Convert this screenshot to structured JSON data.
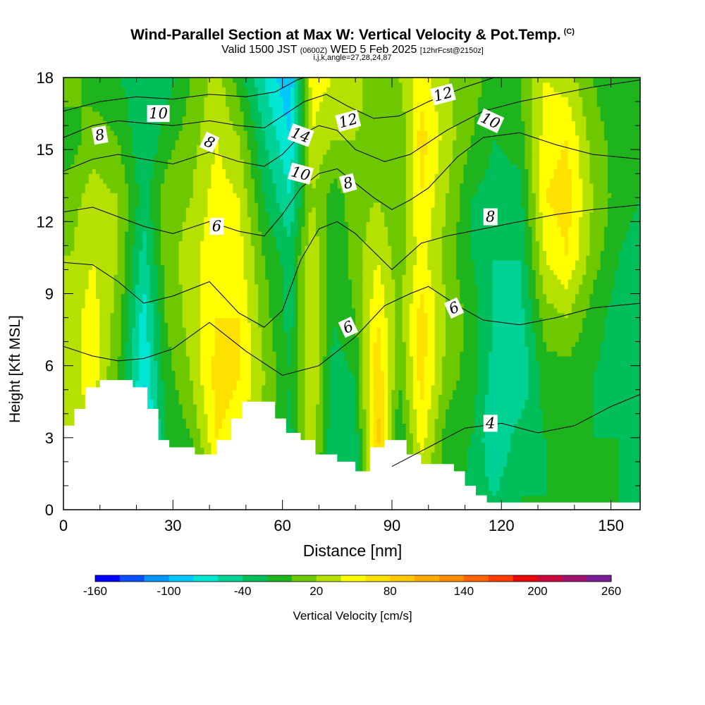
{
  "header": {
    "title": "Wind-Parallel Section at Max W: Vertical Velocity & Pot.Temp.",
    "copyright": "(C)",
    "valid_main": "Valid 1500 JST",
    "valid_z": "(0600Z)",
    "valid_date": "WED 5 Feb 2025",
    "valid_fcst": "[12hrFcst@2150z]",
    "subtitle2": "i,j,k,angle=27,28,24,87"
  },
  "chart_data": {
    "type": "heatmap",
    "xlabel": "Distance [nm]",
    "ylabel": "Height [Kft MSL]",
    "xlim": [
      0,
      158
    ],
    "ylim": [
      0,
      18
    ],
    "x_ticks": [
      0,
      30,
      60,
      90,
      120,
      150
    ],
    "y_ticks": [
      0,
      3,
      6,
      9,
      12,
      15,
      18
    ],
    "colorbar": {
      "label": "Vertical Velocity [cm/s]",
      "ticks": [
        -160,
        -100,
        -40,
        20,
        80,
        140,
        200,
        260
      ],
      "min": -160,
      "max": 260,
      "step": 20,
      "colors": [
        "#0000ff",
        "#0a50ff",
        "#0a96ff",
        "#00c8ff",
        "#00e6d2",
        "#00d296",
        "#00be5a",
        "#1eb41e",
        "#6ec800",
        "#b4e100",
        "#ffff00",
        "#ffe100",
        "#ffc800",
        "#ffaa00",
        "#ff8c00",
        "#ff6400",
        "#ff3c00",
        "#e60a0a",
        "#c80a3c",
        "#a0146e",
        "#781e96"
      ]
    },
    "vertical_velocity_columns": [
      {
        "x": 2,
        "w": [
          20,
          30,
          30,
          30,
          20,
          10,
          -10,
          10
        ]
      },
      {
        "x": 8,
        "w": [
          0,
          40,
          50,
          50,
          40,
          30,
          10,
          -10
        ]
      },
      {
        "x": 15,
        "w": [
          0,
          -10,
          0,
          10,
          20,
          20,
          0,
          -20
        ]
      },
      {
        "x": 22,
        "w": [
          0,
          -100,
          -80,
          -70,
          -50,
          -30,
          -40,
          -30
        ]
      },
      {
        "x": 28,
        "w": [
          -30,
          -20,
          -10,
          0,
          10,
          10,
          -10,
          -30
        ]
      },
      {
        "x": 35,
        "w": [
          -30,
          0,
          20,
          30,
          30,
          20,
          10,
          0
        ]
      },
      {
        "x": 42,
        "w": [
          20,
          60,
          70,
          60,
          60,
          50,
          40,
          30
        ]
      },
      {
        "x": 48,
        "w": [
          20,
          50,
          60,
          60,
          50,
          40,
          20,
          -10
        ]
      },
      {
        "x": 55,
        "w": [
          0,
          10,
          20,
          10,
          0,
          -20,
          -40,
          -60
        ]
      },
      {
        "x": 62,
        "w": [
          -20,
          -30,
          -20,
          -30,
          -30,
          -60,
          -80,
          -100
        ]
      },
      {
        "x": 68,
        "w": [
          0,
          40,
          40,
          40,
          40,
          20,
          40,
          50
        ]
      },
      {
        "x": 74,
        "w": [
          -40,
          -40,
          -30,
          -20,
          -20,
          -10,
          20,
          40
        ]
      },
      {
        "x": 80,
        "w": [
          -40,
          -30,
          -20,
          0,
          10,
          10,
          20,
          30
        ]
      },
      {
        "x": 86,
        "w": [
          40,
          90,
          80,
          60,
          40,
          20,
          10,
          0
        ]
      },
      {
        "x": 92,
        "w": [
          -10,
          -20,
          0,
          10,
          10,
          0,
          0,
          20
        ]
      },
      {
        "x": 98,
        "w": [
          20,
          50,
          70,
          70,
          50,
          60,
          70,
          50
        ]
      },
      {
        "x": 105,
        "w": [
          0,
          -10,
          10,
          20,
          10,
          20,
          30,
          20
        ]
      },
      {
        "x": 112,
        "w": [
          -30,
          -20,
          -10,
          -10,
          -20,
          -20,
          0,
          10
        ]
      },
      {
        "x": 118,
        "w": [
          -40,
          -60,
          -50,
          -40,
          -40,
          -30,
          -20,
          -10
        ]
      },
      {
        "x": 125,
        "w": [
          -20,
          -30,
          -60,
          -50,
          -40,
          -30,
          -10,
          0
        ]
      },
      {
        "x": 132,
        "w": [
          -20,
          -20,
          -10,
          10,
          40,
          60,
          50,
          40
        ]
      },
      {
        "x": 138,
        "w": [
          -20,
          -20,
          -10,
          20,
          60,
          70,
          60,
          30
        ]
      },
      {
        "x": 145,
        "w": [
          -20,
          -20,
          -20,
          -10,
          10,
          20,
          10,
          0
        ]
      },
      {
        "x": 152,
        "w": [
          -20,
          -20,
          -30,
          -30,
          -20,
          -10,
          -10,
          -20
        ]
      },
      {
        "x": 158,
        "w": [
          -30,
          -30,
          -30,
          -30,
          -30,
          -20,
          -20,
          -20
        ]
      }
    ],
    "column_heights": [
      0.5,
      3,
      5.5,
      8,
      10.5,
      13,
      15.5,
      18
    ],
    "terrain": [
      {
        "x": 0,
        "z": 3.5
      },
      {
        "x": 3,
        "z": 4.2
      },
      {
        "x": 6,
        "z": 5.1
      },
      {
        "x": 10,
        "z": 5.4
      },
      {
        "x": 19,
        "z": 5.1
      },
      {
        "x": 23,
        "z": 4.2
      },
      {
        "x": 26,
        "z": 2.9
      },
      {
        "x": 29,
        "z": 2.6
      },
      {
        "x": 36,
        "z": 2.3
      },
      {
        "x": 42,
        "z": 2.9
      },
      {
        "x": 46,
        "z": 3.8
      },
      {
        "x": 49,
        "z": 4.5
      },
      {
        "x": 58,
        "z": 3.8
      },
      {
        "x": 61,
        "z": 3.2
      },
      {
        "x": 65,
        "z": 2.9
      },
      {
        "x": 69,
        "z": 2.3
      },
      {
        "x": 75,
        "z": 2.0
      },
      {
        "x": 80,
        "z": 1.6
      },
      {
        "x": 84,
        "z": 2.6
      },
      {
        "x": 88,
        "z": 2.9
      },
      {
        "x": 94,
        "z": 2.3
      },
      {
        "x": 98,
        "z": 1.9
      },
      {
        "x": 107,
        "z": 1.6
      },
      {
        "x": 110,
        "z": 1.0
      },
      {
        "x": 113,
        "z": 0.6
      },
      {
        "x": 116,
        "z": 0.3
      },
      {
        "x": 158,
        "z": 0.3
      }
    ],
    "theta_contours": [
      {
        "label": "4",
        "points": [
          [
            90,
            1.8
          ],
          [
            100,
            2.6
          ],
          [
            110,
            3.4
          ],
          [
            120,
            3.6
          ],
          [
            130,
            3.2
          ],
          [
            140,
            3.5
          ],
          [
            150,
            4.3
          ],
          [
            158,
            4.8
          ]
        ]
      },
      {
        "label": "6",
        "points": [
          [
            0,
            6.8
          ],
          [
            8,
            6.4
          ],
          [
            15,
            6.2
          ],
          [
            22,
            6.3
          ],
          [
            30,
            6.7
          ],
          [
            40,
            7.8
          ],
          [
            50,
            6.6
          ],
          [
            60,
            5.6
          ],
          [
            70,
            6.0
          ],
          [
            80,
            7.2
          ],
          [
            88,
            8.5
          ],
          [
            95,
            9.0
          ],
          [
            100,
            9.3
          ],
          [
            108,
            8.5
          ],
          [
            115,
            7.9
          ],
          [
            125,
            7.7
          ],
          [
            135,
            8.0
          ],
          [
            145,
            8.4
          ],
          [
            158,
            8.6
          ]
        ]
      },
      {
        "label": "8",
        "points": [
          [
            0,
            10.3
          ],
          [
            8,
            10.2
          ],
          [
            15,
            9.5
          ],
          [
            22,
            8.6
          ],
          [
            30,
            8.9
          ],
          [
            40,
            9.5
          ],
          [
            48,
            8.2
          ],
          [
            55,
            7.6
          ],
          [
            60,
            8.3
          ],
          [
            65,
            10.4
          ],
          [
            70,
            11.7
          ],
          [
            75,
            12.0
          ],
          [
            80,
            11.5
          ],
          [
            90,
            10.0
          ],
          [
            98,
            11.1
          ],
          [
            105,
            11.4
          ],
          [
            115,
            11.7
          ],
          [
            125,
            12.0
          ],
          [
            135,
            12.3
          ],
          [
            145,
            12.5
          ],
          [
            158,
            12.7
          ]
        ]
      },
      {
        "label": "8",
        "points": [
          [
            0,
            12.4
          ],
          [
            8,
            12.6
          ],
          [
            15,
            12.2
          ],
          [
            22,
            11.8
          ],
          [
            30,
            11.5
          ],
          [
            40,
            12.0
          ],
          [
            48,
            11.6
          ],
          [
            55,
            11.4
          ],
          [
            60,
            12.3
          ],
          [
            65,
            13.4
          ],
          [
            70,
            14.0
          ],
          [
            75,
            14.2
          ],
          [
            80,
            13.6
          ],
          [
            85,
            13.0
          ],
          [
            90,
            12.5
          ],
          [
            95,
            12.9
          ],
          [
            100,
            13.4
          ],
          [
            108,
            14.7
          ],
          [
            115,
            15.5
          ],
          [
            125,
            15.7
          ],
          [
            135,
            15.2
          ],
          [
            145,
            14.8
          ],
          [
            158,
            14.6
          ]
        ]
      },
      {
        "label": "10",
        "points": [
          [
            0,
            14.1
          ],
          [
            8,
            14.6
          ],
          [
            15,
            14.8
          ],
          [
            22,
            14.6
          ],
          [
            30,
            14.4
          ],
          [
            40,
            14.9
          ],
          [
            48,
            14.5
          ],
          [
            55,
            14.3
          ],
          [
            60,
            14.8
          ],
          [
            65,
            15.6
          ],
          [
            70,
            16.0
          ],
          [
            75,
            15.8
          ],
          [
            80,
            15.0
          ],
          [
            88,
            14.5
          ],
          [
            95,
            14.8
          ],
          [
            105,
            15.8
          ],
          [
            115,
            16.6
          ],
          [
            125,
            17.0
          ],
          [
            135,
            17.3
          ],
          [
            145,
            17.6
          ],
          [
            158,
            17.9
          ]
        ]
      },
      {
        "label": "12",
        "points": [
          [
            0,
            15.5
          ],
          [
            8,
            16.0
          ],
          [
            15,
            16.2
          ],
          [
            22,
            16.1
          ],
          [
            30,
            16.0
          ],
          [
            40,
            16.2
          ],
          [
            48,
            16.0
          ],
          [
            55,
            15.9
          ],
          [
            60,
            16.4
          ],
          [
            66,
            17.0
          ],
          [
            72,
            17.3
          ],
          [
            78,
            16.8
          ],
          [
            85,
            16.3
          ],
          [
            92,
            16.4
          ],
          [
            100,
            17.0
          ],
          [
            110,
            17.6
          ],
          [
            118,
            18.0
          ]
        ]
      },
      {
        "label": "14",
        "points": [
          [
            0,
            16.6
          ],
          [
            10,
            17.0
          ],
          [
            20,
            17.2
          ],
          [
            30,
            17.1
          ],
          [
            40,
            17.3
          ],
          [
            50,
            17.2
          ],
          [
            58,
            17.4
          ],
          [
            64,
            17.9
          ],
          [
            66,
            18.0
          ]
        ]
      }
    ],
    "contour_labels": [
      {
        "text": "8",
        "x": 10,
        "y": 15.6,
        "angle": -10
      },
      {
        "text": "10",
        "x": 26,
        "y": 16.5,
        "angle": 0
      },
      {
        "text": "8",
        "x": 40,
        "y": 15.3,
        "angle": 25
      },
      {
        "text": "6",
        "x": 42,
        "y": 11.8,
        "angle": 0
      },
      {
        "text": "14",
        "x": 65,
        "y": 15.6,
        "angle": 20
      },
      {
        "text": "10",
        "x": 65,
        "y": 14.0,
        "angle": 15
      },
      {
        "text": "12",
        "x": 78,
        "y": 16.2,
        "angle": -15
      },
      {
        "text": "8",
        "x": 78,
        "y": 13.6,
        "angle": -15
      },
      {
        "text": "6",
        "x": 78,
        "y": 7.6,
        "angle": -25
      },
      {
        "text": "12",
        "x": 104,
        "y": 17.3,
        "angle": -15
      },
      {
        "text": "10",
        "x": 117,
        "y": 16.2,
        "angle": 25
      },
      {
        "text": "8",
        "x": 117,
        "y": 12.2,
        "angle": 0
      },
      {
        "text": "6",
        "x": 107,
        "y": 8.4,
        "angle": -25
      },
      {
        "text": "4",
        "x": 117,
        "y": 3.6,
        "angle": 0
      }
    ]
  }
}
